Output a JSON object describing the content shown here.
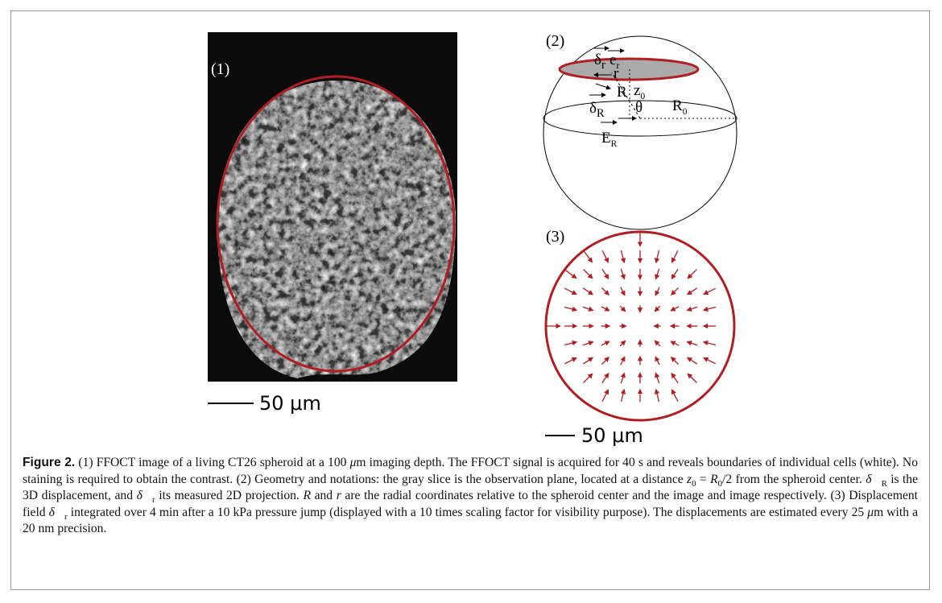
{
  "figure": {
    "panels": [
      {
        "label": "(1)",
        "scale_bar": "50 μm"
      },
      {
        "label": "(2)",
        "symbols": [
          {
            "symbol": "δ",
            "sub": "r"
          },
          {
            "symbol": "e",
            "sub": "r"
          },
          {
            "symbol": "r"
          },
          {
            "symbol": "z",
            "sub": "0"
          },
          {
            "symbol": "R"
          },
          {
            "symbol": "θ"
          },
          {
            "symbol": "R",
            "sub": "0"
          },
          {
            "symbol": "δ",
            "sub": "R"
          },
          {
            "symbol": "E",
            "sub": "R"
          }
        ]
      },
      {
        "label": "(3)",
        "scale_bar": "50 μm"
      }
    ],
    "caption": {
      "label": "Figure 2.",
      "parts": [
        " (1) FFOCT image of a living CT26 spheroid at a 100 ",
        "μ",
        "m imaging depth. The FFOCT signal is acquired for 40 s and reveals boundaries of individual cells (white). No staining is required to obtain the contrast. (2) Geometry and notations: the gray slice is the observation plane, located at a distance ",
        "z",
        "0",
        " = ",
        "R",
        "0",
        "/2 from the spheroid center. ",
        "δ⃗",
        "R",
        " is the 3D displacement, and ",
        "δ⃗",
        "r",
        " its measured 2D projection. ",
        "R",
        " and ",
        "r",
        " are the radial coordinates relative to the spheroid center and the image and image respectively. (3) Displacement field ",
        "δ⃗",
        "r",
        " integrated over 4 min after a 10 kPa pressure jump (displayed with a 10 times scaling factor for visibility purpose). The displacements are estimated every 25 ",
        "μ",
        "m with a 20 nm precision."
      ]
    }
  }
}
